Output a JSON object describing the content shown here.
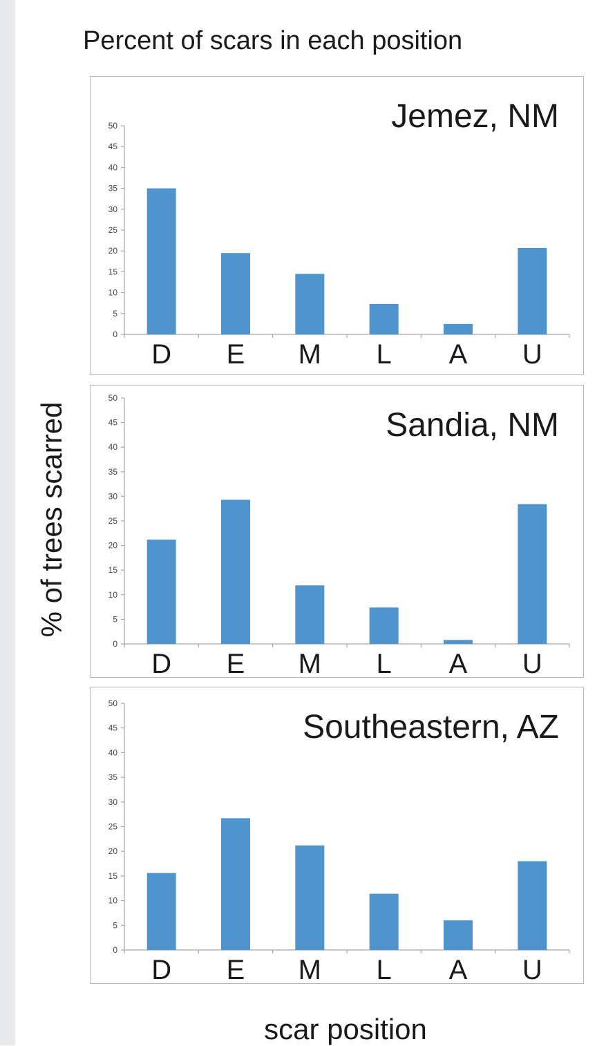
{
  "title": "Percent of scars in each position",
  "ylabel": "% of trees scarred",
  "xlabel": "scar position",
  "chart_data": [
    {
      "type": "bar",
      "title": "Jemez, NM",
      "categories": [
        "D",
        "E",
        "M",
        "L",
        "A",
        "U"
      ],
      "values": [
        35,
        19.5,
        14.5,
        7.3,
        2.5,
        20.7
      ],
      "ylim": [
        0,
        50
      ],
      "yticks": [
        0,
        5,
        10,
        15,
        20,
        25,
        30,
        35,
        40,
        45,
        50
      ],
      "color": "#4f94cd"
    },
    {
      "type": "bar",
      "title": "Sandia, NM",
      "categories": [
        "D",
        "E",
        "M",
        "L",
        "A",
        "U"
      ],
      "values": [
        21.2,
        29.3,
        11.9,
        7.4,
        0.8,
        28.4
      ],
      "ylim": [
        0,
        50
      ],
      "yticks": [
        0,
        5,
        10,
        15,
        20,
        25,
        30,
        35,
        40,
        45,
        50
      ],
      "color": "#4f94cd"
    },
    {
      "type": "bar",
      "title": "Southeastern, AZ",
      "categories": [
        "D",
        "E",
        "M",
        "L",
        "A",
        "U"
      ],
      "values": [
        15.6,
        26.7,
        21.2,
        11.4,
        6,
        18
      ],
      "ylim": [
        0,
        50
      ],
      "yticks": [
        0,
        5,
        10,
        15,
        20,
        25,
        30,
        35,
        40,
        45,
        50
      ],
      "color": "#4f94cd"
    }
  ]
}
